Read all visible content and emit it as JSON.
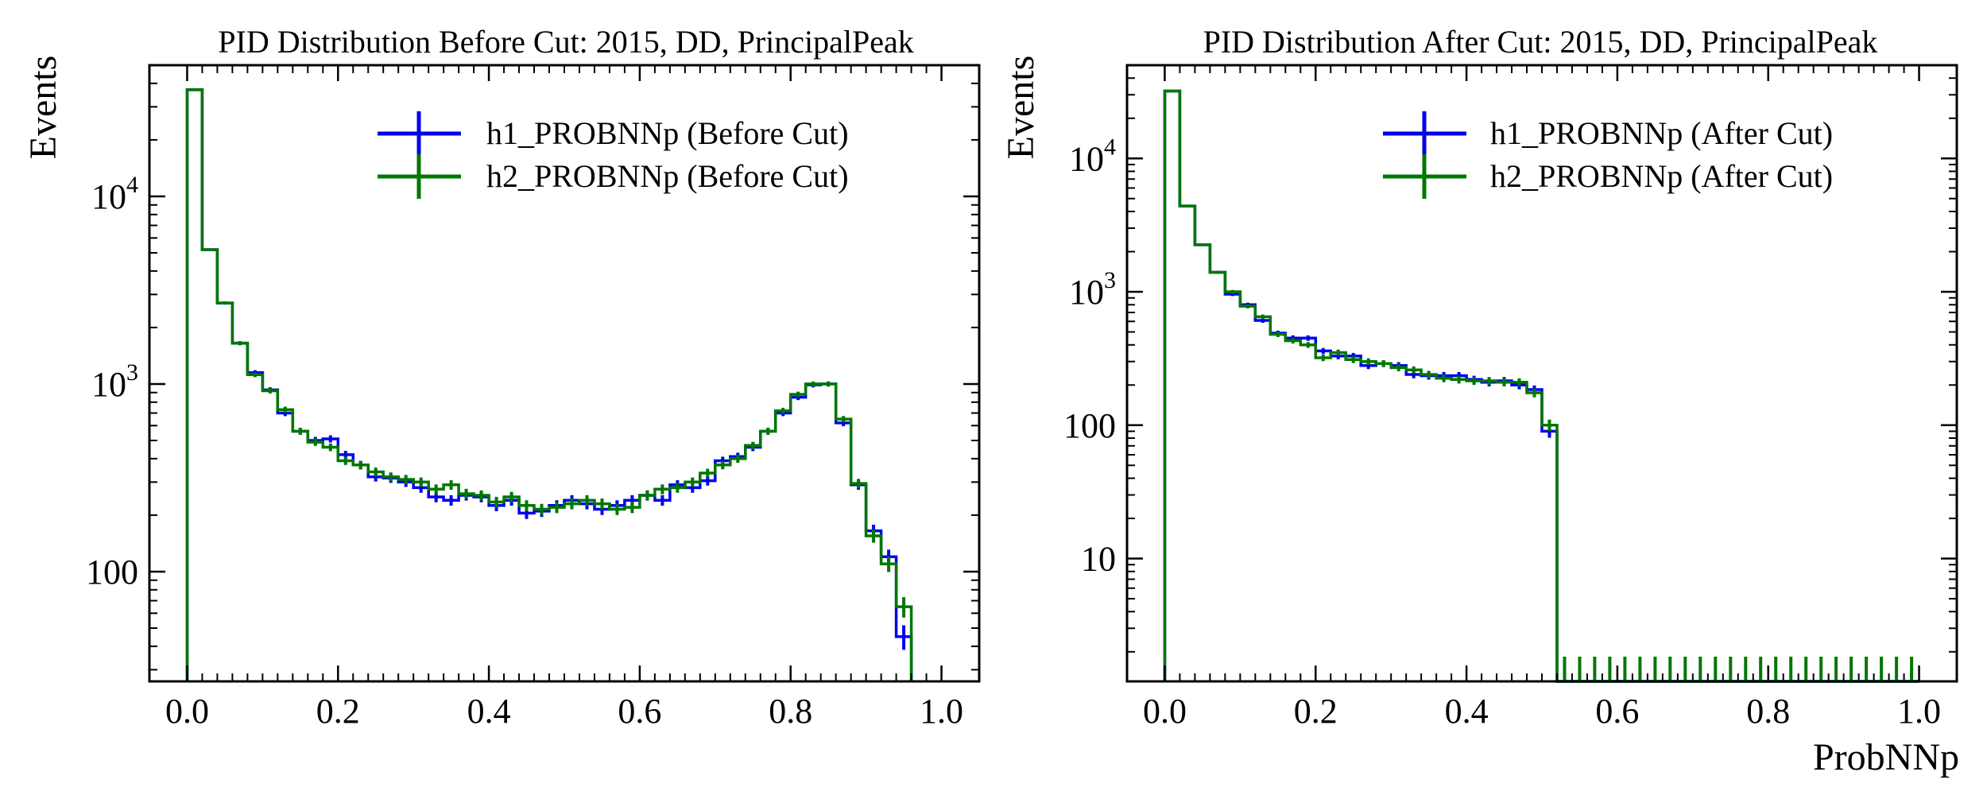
{
  "colors": {
    "h1": "#0000ee",
    "h2": "#007700",
    "axis": "#000000"
  },
  "chart_data": [
    {
      "type": "histogram",
      "title": "PID Distribution Before Cut: 2015, DD, PrincipalPeak",
      "xlabel": "",
      "ylabel": "Events",
      "yscale": "log",
      "xlim": [
        -0.05,
        1.05
      ],
      "ylim": [
        26,
        50000
      ],
      "x_ticks": [
        0,
        0.2,
        0.4,
        0.6,
        0.8,
        1.0
      ],
      "x_tick_labels": [
        "0.0",
        "0.2",
        "0.4",
        "0.6",
        "0.8",
        "1.0"
      ],
      "y_ticks": [
        {
          "value": 100,
          "base": "100",
          "exp": ""
        },
        {
          "value": 1000,
          "base": "10",
          "exp": "3"
        },
        {
          "value": 10000,
          "base": "10",
          "exp": "4"
        }
      ],
      "legend_position": "top-right",
      "bin_width": 0.02,
      "series": [
        {
          "name": "h1_PROBNNp (Before Cut)",
          "color": "#0000ee",
          "values": [
            37000,
            5200,
            2700,
            1650,
            1150,
            930,
            700,
            560,
            500,
            510,
            420,
            370,
            320,
            315,
            300,
            280,
            250,
            240,
            255,
            250,
            225,
            240,
            205,
            210,
            225,
            240,
            230,
            215,
            225,
            240,
            255,
            240,
            290,
            280,
            305,
            390,
            410,
            460,
            560,
            700,
            850,
            990,
            1000,
            620,
            290,
            165,
            120,
            45
          ]
        },
        {
          "name": "h2_PROBNNp (Before Cut)",
          "color": "#007700",
          "values": [
            37000,
            5200,
            2700,
            1650,
            1120,
            920,
            730,
            560,
            490,
            460,
            390,
            370,
            340,
            320,
            310,
            300,
            275,
            290,
            260,
            255,
            235,
            250,
            225,
            215,
            220,
            230,
            240,
            230,
            215,
            220,
            255,
            275,
            280,
            300,
            335,
            370,
            400,
            470,
            560,
            720,
            880,
            1000,
            1000,
            650,
            295,
            155,
            110,
            65
          ]
        }
      ]
    },
    {
      "type": "histogram",
      "title": "PID Distribution After Cut: 2015, DD, PrincipalPeak",
      "xlabel": "ProbNNp",
      "ylabel": "Events",
      "yscale": "log",
      "xlim": [
        -0.05,
        1.05
      ],
      "ylim": [
        1.2,
        50000
      ],
      "x_ticks": [
        0,
        0.2,
        0.4,
        0.6,
        0.8,
        1.0
      ],
      "x_tick_labels": [
        "0.0",
        "0.2",
        "0.4",
        "0.6",
        "0.8",
        "1.0"
      ],
      "y_ticks": [
        {
          "value": 10,
          "base": "10",
          "exp": ""
        },
        {
          "value": 100,
          "base": "100",
          "exp": ""
        },
        {
          "value": 1000,
          "base": "10",
          "exp": "3"
        },
        {
          "value": 10000,
          "base": "10",
          "exp": "4"
        }
      ],
      "legend_position": "top-right",
      "bin_width": 0.02,
      "series": [
        {
          "name": "h1_PROBNNp (After Cut)",
          "color": "#0000ee",
          "values": [
            32000,
            4400,
            2250,
            1400,
            960,
            800,
            610,
            490,
            450,
            450,
            360,
            330,
            330,
            280,
            290,
            280,
            240,
            235,
            235,
            235,
            220,
            210,
            215,
            200,
            185,
            90,
            0,
            0,
            0,
            0,
            0,
            0,
            0,
            0,
            0,
            0,
            0,
            0,
            0,
            0,
            0,
            0,
            0,
            0,
            0,
            0,
            0,
            0,
            0,
            0
          ]
        },
        {
          "name": "h2_PROBNNp (After Cut)",
          "color": "#007700",
          "values": [
            32000,
            4400,
            2250,
            1400,
            1000,
            780,
            650,
            480,
            430,
            400,
            320,
            350,
            310,
            300,
            290,
            270,
            260,
            240,
            225,
            220,
            215,
            215,
            210,
            210,
            175,
            100,
            0,
            0,
            0,
            0,
            0,
            0,
            0,
            0,
            0,
            0,
            0,
            0,
            0,
            0,
            0,
            0,
            0,
            0,
            0,
            0,
            0,
            0,
            0,
            0
          ]
        }
      ]
    }
  ]
}
